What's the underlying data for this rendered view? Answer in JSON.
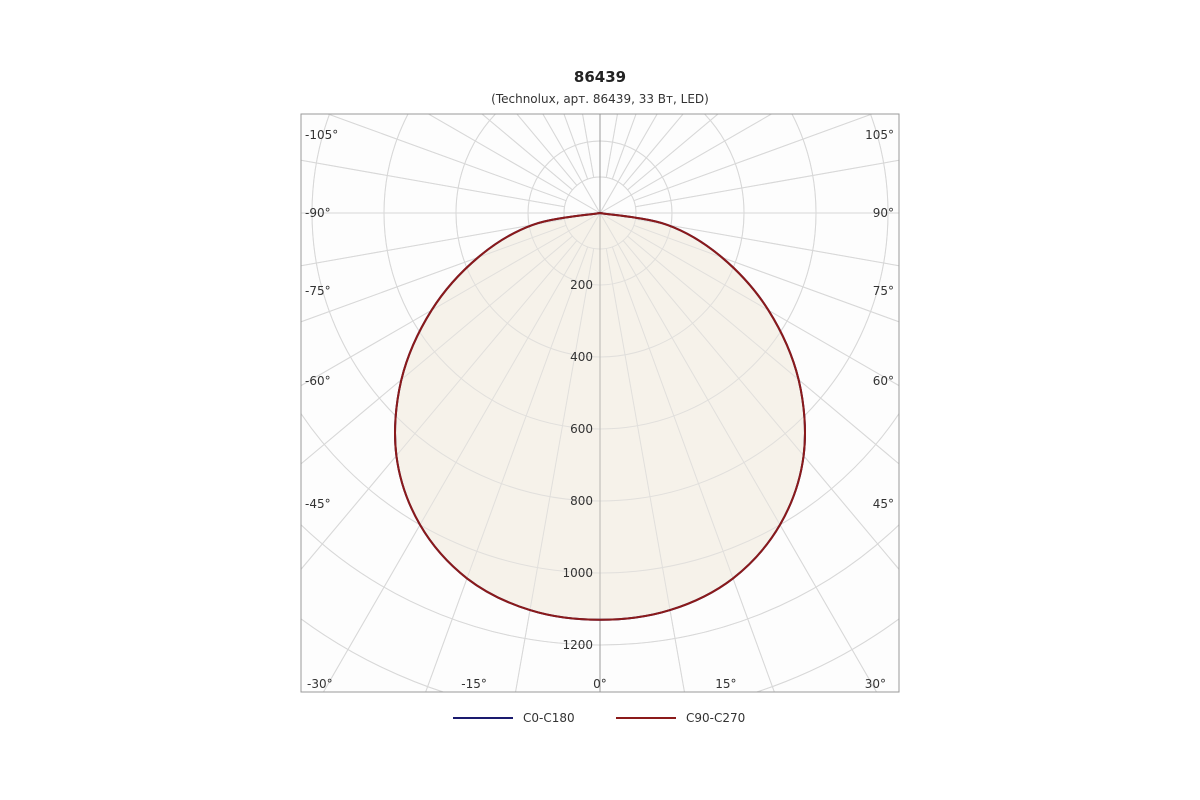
{
  "chart_data": {
    "type": "polar",
    "title": "86439",
    "subtitle": "(Technolux, арт. 86439, 33 Вт, LED)",
    "r_ticks": [
      200,
      400,
      600,
      800,
      1000,
      1200
    ],
    "r_tick_labels": [
      "200",
      "400",
      "600",
      "800",
      "1000",
      "1200"
    ],
    "angle_labels_left": [
      "-105°",
      "-90°",
      "-75°",
      "-60°",
      "-45°",
      "-30°",
      "-15°",
      "0°"
    ],
    "angle_labels_right": [
      "105°",
      "90°",
      "75°",
      "60°",
      "45°",
      "30°",
      "15°"
    ],
    "angle_values_left": [
      -105,
      -90,
      -75,
      -60,
      -45,
      -30,
      -15,
      0
    ],
    "angle_values_right": [
      105,
      90,
      75,
      60,
      45,
      30,
      15
    ],
    "angle_grid_step": 10,
    "grid": true,
    "legend_position": "bottom",
    "series": [
      {
        "name": "C0-C180",
        "color": "#1a1a6e",
        "angles": [
          0,
          10,
          20,
          30,
          40,
          50,
          60,
          70,
          80,
          90
        ],
        "values": [
          1130,
          1120,
          1080,
          1000,
          880,
          720,
          540,
          360,
          190,
          0
        ]
      },
      {
        "name": "C90-C270",
        "color": "#8b1a1a",
        "angles": [
          0,
          10,
          20,
          30,
          40,
          50,
          60,
          70,
          80,
          90
        ],
        "values": [
          1130,
          1120,
          1080,
          1000,
          880,
          720,
          540,
          360,
          190,
          0
        ]
      }
    ],
    "fill_color": "#f5f0e6"
  }
}
